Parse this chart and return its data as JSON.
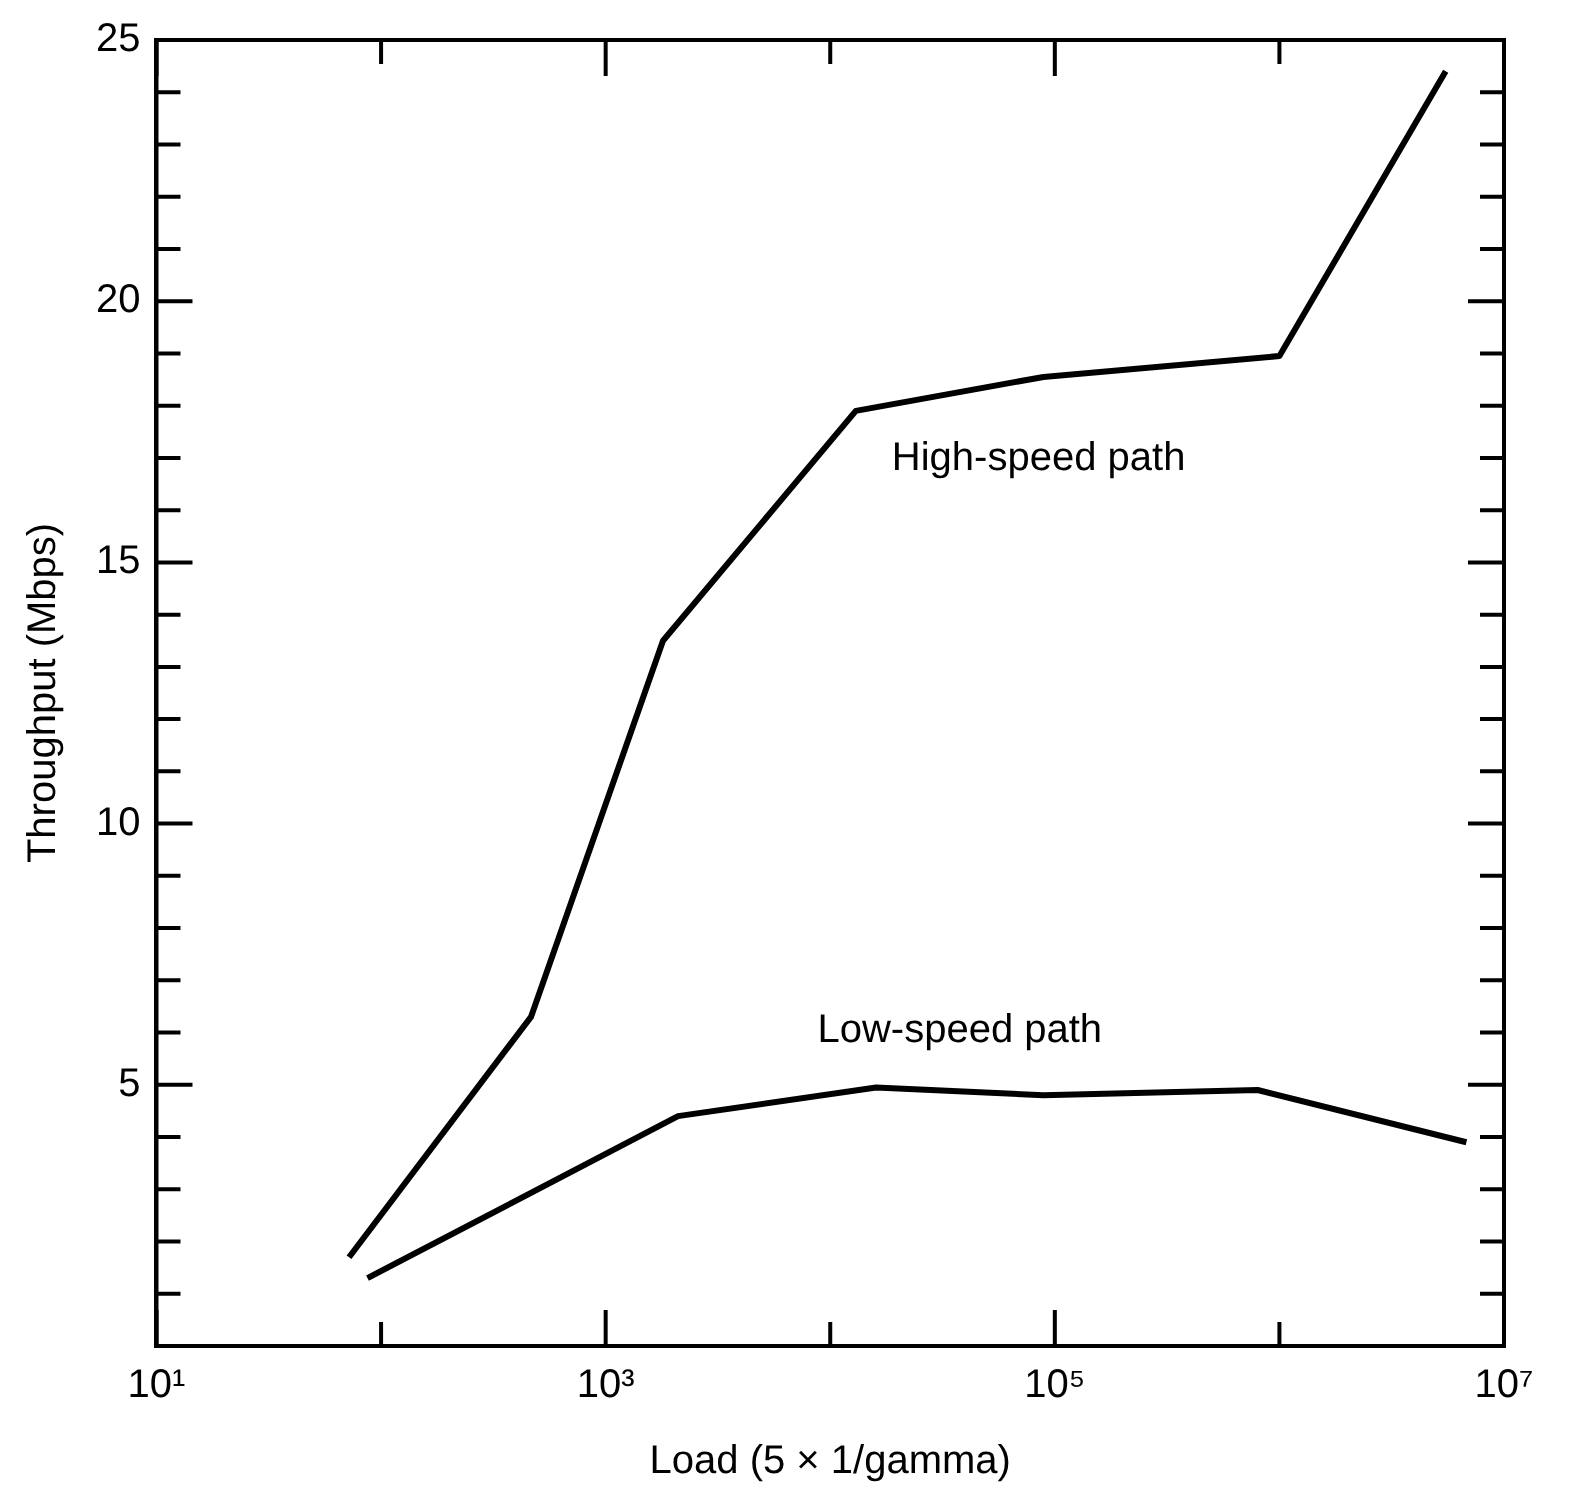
{
  "chart_data": {
    "type": "line",
    "xlabel": "Load (5 × 1/gamma)",
    "ylabel": "Throughput (Mbps)",
    "log": "x",
    "grid": false,
    "legend": false,
    "marker": "none",
    "line_style": "solid",
    "xlim": [
      10,
      10000000
    ],
    "ylim": [
      0,
      25
    ],
    "xticks": [
      {
        "value": 10,
        "label": "10¹"
      },
      {
        "value": 100,
        "label": null
      },
      {
        "value": 1000,
        "label": "10³"
      },
      {
        "value": 10000,
        "label": null
      },
      {
        "value": 100000,
        "label": "10⁵"
      },
      {
        "value": 1000000,
        "label": null
      },
      {
        "value": 10000000,
        "label": "10⁷"
      }
    ],
    "yticks": [
      {
        "value": 1,
        "label": null
      },
      {
        "value": 2,
        "label": null
      },
      {
        "value": 3,
        "label": null
      },
      {
        "value": 4,
        "label": null
      },
      5,
      {
        "value": 6,
        "label": null
      },
      {
        "value": 7,
        "label": null
      },
      {
        "value": 8,
        "label": null
      },
      {
        "value": 9,
        "label": null
      },
      10,
      {
        "value": 11,
        "label": null
      },
      {
        "value": 12,
        "label": null
      },
      {
        "value": 13,
        "label": null
      },
      {
        "value": 14,
        "label": null
      },
      15,
      {
        "value": 16,
        "label": null
      },
      {
        "value": 17,
        "label": null
      },
      {
        "value": 18,
        "label": null
      },
      {
        "value": 19,
        "label": null
      },
      20,
      {
        "value": 21,
        "label": null
      },
      {
        "value": 22,
        "label": null
      },
      {
        "value": 23,
        "label": null
      },
      {
        "value": 24,
        "label": null
      },
      25
    ],
    "series": [
      {
        "name": "High-speed path",
        "color": "#000000",
        "x": [
          72,
          465,
          1800,
          13000,
          89000,
          1000000,
          5500000
        ],
        "values": [
          1.7,
          6.3,
          13.5,
          17.9,
          18.55,
          18.95,
          24.4
        ]
      },
      {
        "name": "Low-speed path",
        "color": "#000000",
        "x": [
          87,
          2100,
          16000,
          89000,
          800000,
          6800000
        ],
        "values": [
          1.3,
          4.4,
          4.95,
          4.8,
          4.9,
          3.9
        ]
      }
    ]
  }
}
